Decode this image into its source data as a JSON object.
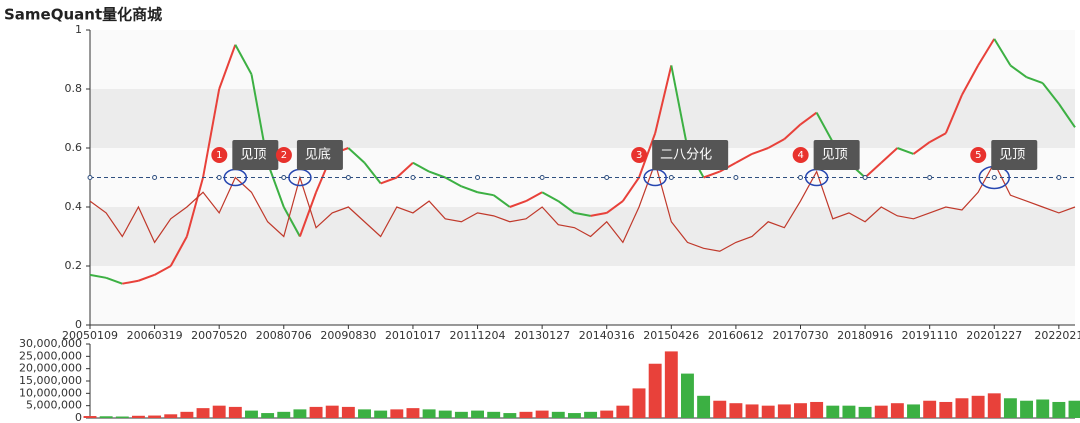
{
  "title": "SameQuant量化商城",
  "chart_data": [
    {
      "type": "line",
      "categories": [
        "20050109",
        null,
        null,
        null,
        "20060319",
        null,
        null,
        null,
        "20070520",
        null,
        null,
        null,
        "20080706",
        null,
        null,
        null,
        "20090830",
        null,
        null,
        null,
        "20101017",
        null,
        null,
        null,
        "20111204",
        null,
        null,
        null,
        "20130127",
        null,
        null,
        null,
        "20140316",
        null,
        null,
        null,
        "20150426",
        null,
        null,
        null,
        "20160612",
        null,
        null,
        null,
        "20170730",
        null,
        null,
        null,
        "20180916",
        null,
        null,
        null,
        "20191110",
        null,
        null,
        null,
        "20201227",
        null,
        null,
        null,
        "2022021",
        null
      ],
      "series": [
        {
          "values": [
            0.17,
            0.16,
            0.14,
            0.15,
            0.17,
            0.2,
            0.3,
            0.5,
            0.8,
            0.95,
            0.85,
            0.55,
            0.4,
            0.3,
            0.45,
            0.58,
            0.6,
            0.55,
            0.48,
            0.5,
            0.55,
            0.52,
            0.5,
            0.47,
            0.45,
            0.44,
            0.4,
            0.42,
            0.45,
            0.42,
            0.38,
            0.37,
            0.38,
            0.42,
            0.5,
            0.65,
            0.88,
            0.6,
            0.5,
            0.52,
            0.55,
            0.58,
            0.6,
            0.63,
            0.68,
            0.72,
            0.62,
            0.55,
            0.5,
            0.55,
            0.6,
            0.58,
            0.62,
            0.65,
            0.78,
            0.88,
            0.97,
            0.88,
            0.84,
            0.82,
            0.75,
            0.67
          ],
          "up_color": "#e8413a",
          "down_color": "#3cb043"
        },
        {
          "values": [
            0.42,
            0.38,
            0.3,
            0.4,
            0.28,
            0.36,
            0.4,
            0.45,
            0.38,
            0.5,
            0.45,
            0.35,
            0.3,
            0.5,
            0.33,
            0.38,
            0.4,
            0.35,
            0.3,
            0.4,
            0.38,
            0.42,
            0.36,
            0.35,
            0.38,
            0.37,
            0.35,
            0.36,
            0.4,
            0.34,
            0.33,
            0.3,
            0.35,
            0.28,
            0.4,
            0.55,
            0.35,
            0.28,
            0.26,
            0.25,
            0.28,
            0.3,
            0.35,
            0.33,
            0.42,
            0.52,
            0.36,
            0.38,
            0.35,
            0.4,
            0.37,
            0.36,
            0.38,
            0.4,
            0.39,
            0.45,
            0.55,
            0.44,
            0.42,
            0.4,
            0.38,
            0.4
          ],
          "color": "#c0392b"
        }
      ],
      "reference_line": 0.5,
      "annotations": [
        {
          "number": "1",
          "text": "见顶",
          "index": 9
        },
        {
          "number": "2",
          "text": "见底",
          "index": 13
        },
        {
          "number": "3",
          "text": "二八分化",
          "index": 35
        },
        {
          "number": "4",
          "text": "见顶",
          "index": 45
        },
        {
          "number": "5",
          "text": "见顶",
          "index": 56
        }
      ],
      "ylim": [
        0,
        1
      ],
      "yticks": [
        0,
        0.2,
        0.4,
        0.6,
        0.8,
        1
      ],
      "split_area": true
    },
    {
      "type": "bar",
      "values": [
        800000,
        700000,
        600000,
        900000,
        1000000,
        1500000,
        2500000,
        4000000,
        5000000,
        4500000,
        3000000,
        2000000,
        2500000,
        3500000,
        4500000,
        5000000,
        4500000,
        3500000,
        3000000,
        3500000,
        4000000,
        3500000,
        3000000,
        2500000,
        3000000,
        2500000,
        2000000,
        2500000,
        3000000,
        2500000,
        2000000,
        2500000,
        3000000,
        5000000,
        12000000,
        22000000,
        27000000,
        18000000,
        9000000,
        7000000,
        6000000,
        5500000,
        5000000,
        5500000,
        6000000,
        6500000,
        5000000,
        5000000,
        4500000,
        5000000,
        6000000,
        5500000,
        7000000,
        6500000,
        8000000,
        9000000,
        10000000,
        8000000,
        7000000,
        7500000,
        6500000,
        7000000
      ],
      "ylim": [
        0,
        30000000
      ],
      "yticks": [
        0,
        {
          "value": 5000000,
          "label": "5,000,000"
        },
        {
          "value": 10000000,
          "label": "10,000,000"
        },
        {
          "value": 15000000,
          "label": "15,000,000"
        },
        {
          "value": 20000000,
          "label": "20,000,000"
        },
        {
          "value": 25000000,
          "label": "25,000,000"
        },
        {
          "value": 30000000,
          "label": "30,000,000"
        }
      ]
    }
  ]
}
